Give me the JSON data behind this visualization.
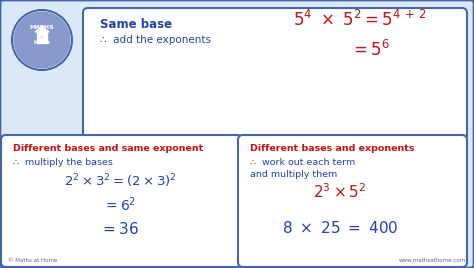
{
  "bg_color": "#dce8f5",
  "border_color": "#4466aa",
  "red_color": "#cc1111",
  "blue_color": "#2244aa",
  "white": "#ffffff",
  "logo_bg": "#8899cc",
  "top_box": {
    "label1": "Same base",
    "label2": "∴  add the exponents"
  },
  "bottom_left": {
    "label1": "Different bases and same exponent",
    "label2": "∴  multiply the bases"
  },
  "bottom_right": {
    "label1": "Different bases and exponents",
    "label2": "∴  work out each term",
    "label3": "and multiply them"
  },
  "footer_left": "© Maths at Home",
  "footer_right": "www.mathsathome.com"
}
